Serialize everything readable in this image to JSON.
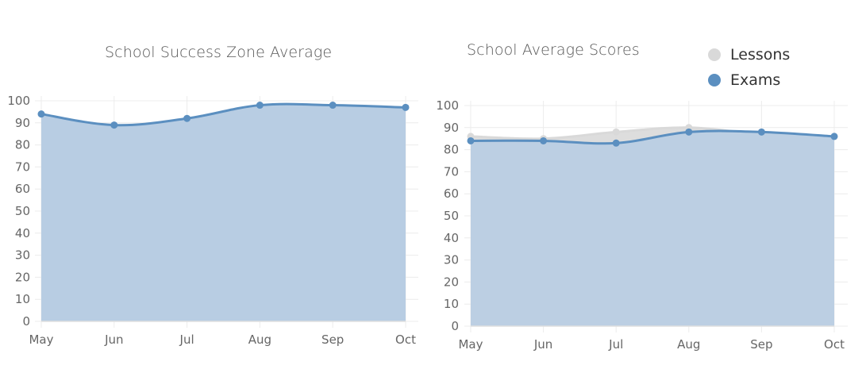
{
  "colors": {
    "exams": "#5b8fc0",
    "exams_fill": "#b8cde3",
    "lessons": "#d9d9d9",
    "grid": "#ececec"
  },
  "chart_data": [
    {
      "type": "area",
      "title": "School Success Zone Average",
      "categories": [
        "May",
        "Jun",
        "Jul",
        "Aug",
        "Sep",
        "Oct"
      ],
      "series": [
        {
          "values": [
            94,
            89,
            92,
            98,
            98,
            97
          ]
        }
      ],
      "yticks": [
        "0",
        "10",
        "20",
        "30",
        "40",
        "50",
        "60",
        "70",
        "80",
        "90",
        "100"
      ],
      "ylim": [
        0,
        100
      ],
      "grid": true
    },
    {
      "type": "area",
      "title": "School Average Scores",
      "categories": [
        "May",
        "Jun",
        "Jul",
        "Aug",
        "Sep",
        "Oct"
      ],
      "series": [
        {
          "name": "Lessons",
          "values": [
            86,
            85,
            88,
            90,
            87,
            86
          ]
        },
        {
          "name": "Exams",
          "values": [
            84,
            84,
            83,
            88,
            88,
            86
          ]
        }
      ],
      "yticks": [
        "0",
        "10",
        "20",
        "30",
        "40",
        "50",
        "60",
        "70",
        "80",
        "90",
        "100"
      ],
      "ylim": [
        0,
        100
      ],
      "grid": true,
      "legend_position": "top-right"
    }
  ]
}
